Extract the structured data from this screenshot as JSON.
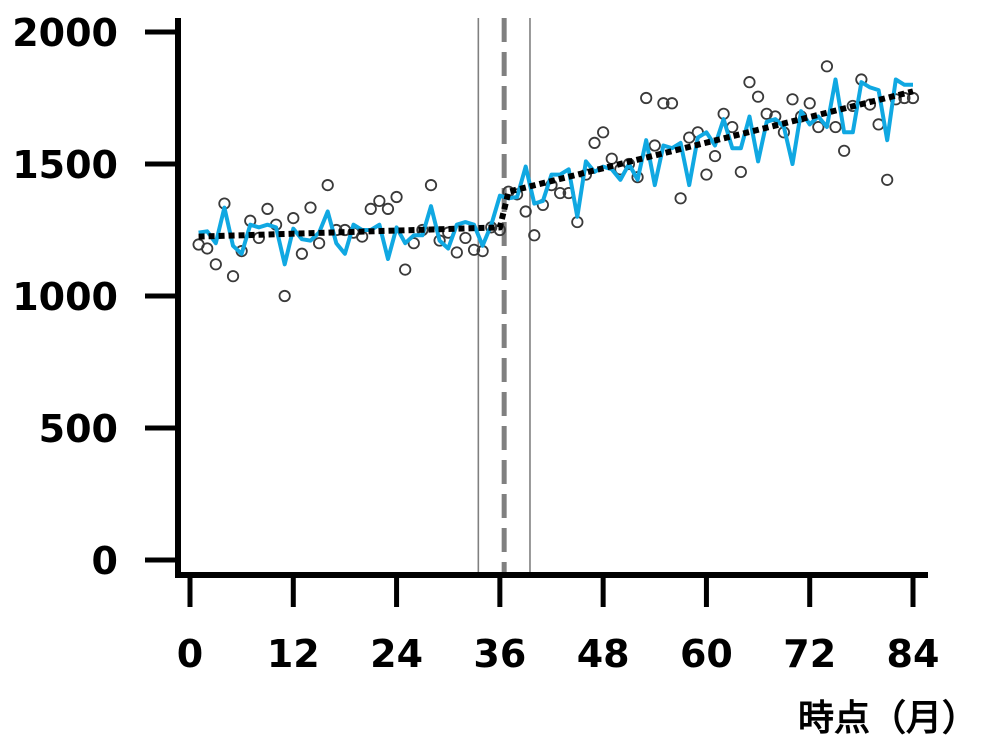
{
  "chart_data": {
    "type": "line",
    "xlabel": "時点（月）",
    "ylabel": "",
    "xlim": [
      0,
      84
    ],
    "ylim": [
      0,
      2000
    ],
    "xticks": [
      0,
      12,
      24,
      36,
      48,
      60,
      72,
      84
    ],
    "yticks": [
      0,
      500,
      1000,
      1500,
      2000
    ],
    "xtick_labels": [
      "0",
      "12",
      "24",
      "36",
      "48",
      "60",
      "72",
      "84"
    ],
    "ytick_labels": [
      "0",
      "500",
      "1000",
      "1500",
      "2000"
    ],
    "grid": false,
    "legend": "none",
    "vertical_lines": [
      {
        "x": 36.5,
        "style": "dashed",
        "color": "#808080"
      },
      {
        "x": 33.5,
        "style": "solid",
        "color": "#808080"
      },
      {
        "x": 39.5,
        "style": "solid",
        "color": "#808080"
      }
    ],
    "series": [
      {
        "kind": "scatter",
        "marker": "hollow-circle",
        "color": "#3a3a3a",
        "x": [
          1,
          2,
          3,
          4,
          5,
          6,
          7,
          8,
          9,
          10,
          11,
          12,
          13,
          14,
          15,
          16,
          17,
          18,
          19,
          20,
          21,
          22,
          23,
          24,
          25,
          26,
          27,
          28,
          29,
          30,
          31,
          32,
          33,
          34,
          35,
          36,
          37,
          38,
          39,
          40,
          41,
          42,
          43,
          44,
          45,
          46,
          47,
          48,
          49,
          50,
          51,
          52,
          53,
          54,
          55,
          56,
          57,
          58,
          59,
          60,
          61,
          62,
          63,
          64,
          65,
          66,
          67,
          68,
          69,
          70,
          71,
          72,
          73,
          74,
          75,
          76,
          77,
          78,
          79,
          80,
          81,
          82,
          83,
          84
        ],
        "y": [
          1195,
          1180,
          1120,
          1350,
          1075,
          1170,
          1285,
          1220,
          1330,
          1270,
          1000,
          1295,
          1160,
          1335,
          1200,
          1420,
          1250,
          1250,
          1240,
          1225,
          1330,
          1360,
          1330,
          1375,
          1100,
          1200,
          1250,
          1420,
          1210,
          1240,
          1165,
          1220,
          1175,
          1170,
          1260,
          1250,
          1395,
          1385,
          1320,
          1230,
          1345,
          1420,
          1390,
          1390,
          1280,
          1460,
          1580,
          1620,
          1520,
          1480,
          1500,
          1450,
          1750,
          1570,
          1730,
          1730,
          1370,
          1600,
          1620,
          1460,
          1530,
          1690,
          1640,
          1470,
          1810,
          1755,
          1690,
          1680,
          1620,
          1745,
          1680,
          1730,
          1640,
          1870,
          1640,
          1550,
          1720,
          1820,
          1725,
          1650,
          1440,
          1745,
          1750,
          1750
        ]
      },
      {
        "kind": "line",
        "color": "#10a8e2",
        "x": [
          1,
          2,
          3,
          4,
          5,
          6,
          7,
          8,
          9,
          10,
          11,
          12,
          13,
          14,
          15,
          16,
          17,
          18,
          19,
          20,
          21,
          22,
          23,
          24,
          25,
          26,
          27,
          28,
          29,
          30,
          31,
          32,
          33,
          34,
          35,
          36,
          37,
          38,
          39,
          40,
          41,
          42,
          43,
          44,
          45,
          46,
          47,
          48,
          49,
          50,
          51,
          52,
          53,
          54,
          55,
          56,
          57,
          58,
          59,
          60,
          61,
          62,
          63,
          64,
          65,
          66,
          67,
          68,
          69,
          70,
          71,
          72,
          73,
          74,
          75,
          76,
          77,
          78,
          79,
          80,
          81,
          82,
          83,
          84
        ],
        "y": [
          1240,
          1245,
          1200,
          1335,
          1190,
          1160,
          1270,
          1260,
          1270,
          1260,
          1120,
          1255,
          1215,
          1210,
          1240,
          1320,
          1200,
          1160,
          1270,
          1250,
          1250,
          1270,
          1140,
          1260,
          1200,
          1230,
          1230,
          1340,
          1210,
          1180,
          1270,
          1280,
          1270,
          1190,
          1270,
          1380,
          1370,
          1375,
          1490,
          1350,
          1360,
          1460,
          1460,
          1480,
          1300,
          1510,
          1470,
          1490,
          1480,
          1440,
          1500,
          1440,
          1590,
          1420,
          1570,
          1560,
          1580,
          1420,
          1600,
          1620,
          1570,
          1670,
          1560,
          1560,
          1680,
          1510,
          1660,
          1670,
          1640,
          1500,
          1700,
          1650,
          1680,
          1640,
          1820,
          1620,
          1620,
          1810,
          1790,
          1780,
          1590,
          1820,
          1800,
          1800
        ]
      },
      {
        "kind": "line",
        "style": "dotted",
        "color": "#000000",
        "x": [
          1,
          36,
          37,
          84
        ],
        "y": [
          1225,
          1260,
          1395,
          1775
        ]
      }
    ]
  }
}
